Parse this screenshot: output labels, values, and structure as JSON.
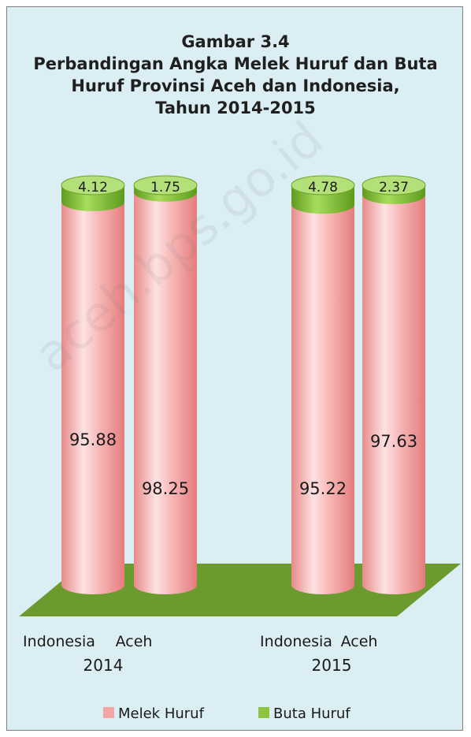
{
  "chart_data": {
    "type": "bar",
    "title_lines": [
      "Gambar 3.4",
      "Perbandingan Angka Melek Huruf dan Buta",
      "Huruf Provinsi Aceh dan Indonesia,",
      "Tahun 2014-2015"
    ],
    "groups": [
      "2014",
      "2015"
    ],
    "categories": [
      "Indonesia",
      "Aceh",
      "Indonesia",
      "Aceh"
    ],
    "series": [
      {
        "name": "Melek Huruf",
        "values": [
          95.88,
          98.25,
          95.22,
          97.63
        ]
      },
      {
        "name": "Buta Huruf",
        "values": [
          4.12,
          1.75,
          4.78,
          2.37
        ]
      }
    ],
    "value_labels": {
      "Melek Huruf": [
        "95.88",
        "98.25",
        "95.22",
        "97.63"
      ],
      "Buta Huruf": [
        "4.12",
        "1.75",
        "4.78",
        "2.37"
      ]
    },
    "stacked": "100%",
    "grid": false,
    "legend_position": "bottom",
    "colors": {
      "Melek Huruf": "#f4a6a6",
      "Buta Huruf": "#8cc63f",
      "background": "#daeef3",
      "floor": "#6b9a2e"
    }
  },
  "watermark": "aceh.bps.go.id"
}
